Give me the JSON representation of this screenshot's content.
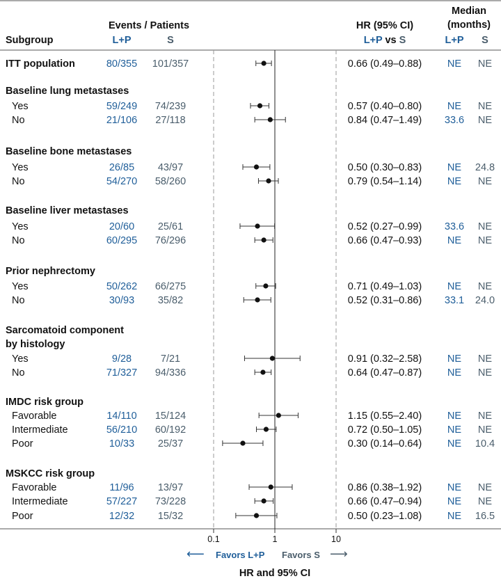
{
  "colors": {
    "lp": "#1f5e99",
    "s": "#4a5d6b",
    "text": "#111111",
    "rule": "#555555",
    "dashed": "#999999"
  },
  "header": {
    "subgroup": "Subgroup",
    "events_patients": "Events / Patients",
    "lp": "L+P",
    "s": "S",
    "hr_ci": "HR (95% CI)",
    "hr_lp": "L+P",
    "hr_vs": " vs ",
    "hr_s": "S",
    "median_line1": "Median",
    "median_line2": "(months)",
    "median_lp": "L+P",
    "median_s": "S"
  },
  "footer": {
    "favors_lp": "Favors L+P",
    "favors_s": "Favors S",
    "xlabel": "HR and 95% CI",
    "arrow_left": "⟵",
    "arrow_right": "⟶"
  },
  "chart_data": {
    "type": "forest",
    "xscale": "log",
    "xlim": [
      0.1,
      10
    ],
    "xticks": [
      "0.1",
      "1",
      "10"
    ],
    "xlabel": "HR and 95% CI",
    "reference_line": 1,
    "rows": [
      {
        "kind": "row",
        "label": "ITT population",
        "bold": true,
        "lp": "80/355",
        "s": "101/357",
        "hr": 0.66,
        "lo": 0.49,
        "hi": 0.88,
        "hr_text": "0.66 (0.49–0.88)",
        "med_lp": "NE",
        "med_s": "NE"
      },
      {
        "kind": "header",
        "label": "Baseline lung metastases"
      },
      {
        "kind": "row",
        "label": "Yes",
        "lp": "59/249",
        "s": "74/239",
        "hr": 0.57,
        "lo": 0.4,
        "hi": 0.8,
        "hr_text": "0.57 (0.40–0.80)",
        "med_lp": "NE",
        "med_s": "NE"
      },
      {
        "kind": "row",
        "label": "No",
        "lp": "21/106",
        "s": "27/118",
        "hr": 0.84,
        "lo": 0.47,
        "hi": 1.49,
        "hr_text": "0.84 (0.47–1.49)",
        "med_lp": "33.6",
        "med_s": "NE"
      },
      {
        "kind": "header",
        "label": "Baseline bone metastases"
      },
      {
        "kind": "row",
        "label": "Yes",
        "lp": "26/85",
        "s": "43/97",
        "hr": 0.5,
        "lo": 0.3,
        "hi": 0.83,
        "hr_text": "0.50 (0.30–0.83)",
        "med_lp": "NE",
        "med_s": "24.8"
      },
      {
        "kind": "row",
        "label": "No",
        "lp": "54/270",
        "s": "58/260",
        "hr": 0.79,
        "lo": 0.54,
        "hi": 1.14,
        "hr_text": "0.79 (0.54–1.14)",
        "med_lp": "NE",
        "med_s": "NE"
      },
      {
        "kind": "header",
        "label": "Baseline liver metastases"
      },
      {
        "kind": "row",
        "label": "Yes",
        "lp": "20/60",
        "s": "25/61",
        "hr": 0.52,
        "lo": 0.27,
        "hi": 0.99,
        "hr_text": "0.52 (0.27–0.99)",
        "med_lp": "33.6",
        "med_s": "NE"
      },
      {
        "kind": "row",
        "label": "No",
        "lp": "60/295",
        "s": "76/296",
        "hr": 0.66,
        "lo": 0.47,
        "hi": 0.93,
        "hr_text": "0.66 (0.47–0.93)",
        "med_lp": "NE",
        "med_s": "NE"
      },
      {
        "kind": "header",
        "label": "Prior nephrectomy"
      },
      {
        "kind": "row",
        "label": "Yes",
        "lp": "50/262",
        "s": "66/275",
        "hr": 0.71,
        "lo": 0.49,
        "hi": 1.03,
        "hr_text": "0.71 (0.49–1.03)",
        "med_lp": "NE",
        "med_s": "NE"
      },
      {
        "kind": "row",
        "label": "No",
        "lp": "30/93",
        "s": "35/82",
        "hr": 0.52,
        "lo": 0.31,
        "hi": 0.86,
        "hr_text": "0.52 (0.31–0.86)",
        "med_lp": "33.1",
        "med_s": "24.0"
      },
      {
        "kind": "header",
        "label": "Sarcomatoid component"
      },
      {
        "kind": "header",
        "label": "by histology"
      },
      {
        "kind": "row",
        "label": "Yes",
        "lp": "9/28",
        "s": "7/21",
        "hr": 0.91,
        "lo": 0.32,
        "hi": 2.58,
        "hr_text": "0.91 (0.32–2.58)",
        "med_lp": "NE",
        "med_s": "NE"
      },
      {
        "kind": "row",
        "label": "No",
        "lp": "71/327",
        "s": "94/336",
        "hr": 0.64,
        "lo": 0.47,
        "hi": 0.87,
        "hr_text": "0.64 (0.47–0.87)",
        "med_lp": "NE",
        "med_s": "NE"
      },
      {
        "kind": "header",
        "label": "IMDC risk group"
      },
      {
        "kind": "row",
        "label": "Favorable",
        "lp": "14/110",
        "s": "15/124",
        "hr": 1.15,
        "lo": 0.55,
        "hi": 2.4,
        "hr_text": "1.15 (0.55–2.40)",
        "med_lp": "NE",
        "med_s": "NE"
      },
      {
        "kind": "row",
        "label": "Intermediate",
        "lp": "56/210",
        "s": "60/192",
        "hr": 0.72,
        "lo": 0.5,
        "hi": 1.05,
        "hr_text": "0.72 (0.50–1.05)",
        "med_lp": "NE",
        "med_s": "NE"
      },
      {
        "kind": "row",
        "label": "Poor",
        "lp": "10/33",
        "s": "25/37",
        "hr": 0.3,
        "lo": 0.14,
        "hi": 0.64,
        "hr_text": "0.30 (0.14–0.64)",
        "med_lp": "NE",
        "med_s": "10.4"
      },
      {
        "kind": "header",
        "label": "MSKCC risk group"
      },
      {
        "kind": "row",
        "label": "Favorable",
        "lp": "11/96",
        "s": "13/97",
        "hr": 0.86,
        "lo": 0.38,
        "hi": 1.92,
        "hr_text": "0.86 (0.38–1.92)",
        "med_lp": "NE",
        "med_s": "NE"
      },
      {
        "kind": "row",
        "label": "Intermediate",
        "lp": "57/227",
        "s": "73/228",
        "hr": 0.66,
        "lo": 0.47,
        "hi": 0.94,
        "hr_text": "0.66 (0.47–0.94)",
        "med_lp": "NE",
        "med_s": "NE"
      },
      {
        "kind": "row",
        "label": "Poor",
        "lp": "12/32",
        "s": "15/32",
        "hr": 0.5,
        "lo": 0.23,
        "hi": 1.08,
        "hr_text": "0.50 (0.23–1.08)",
        "med_lp": "NE",
        "med_s": "16.5"
      }
    ]
  }
}
